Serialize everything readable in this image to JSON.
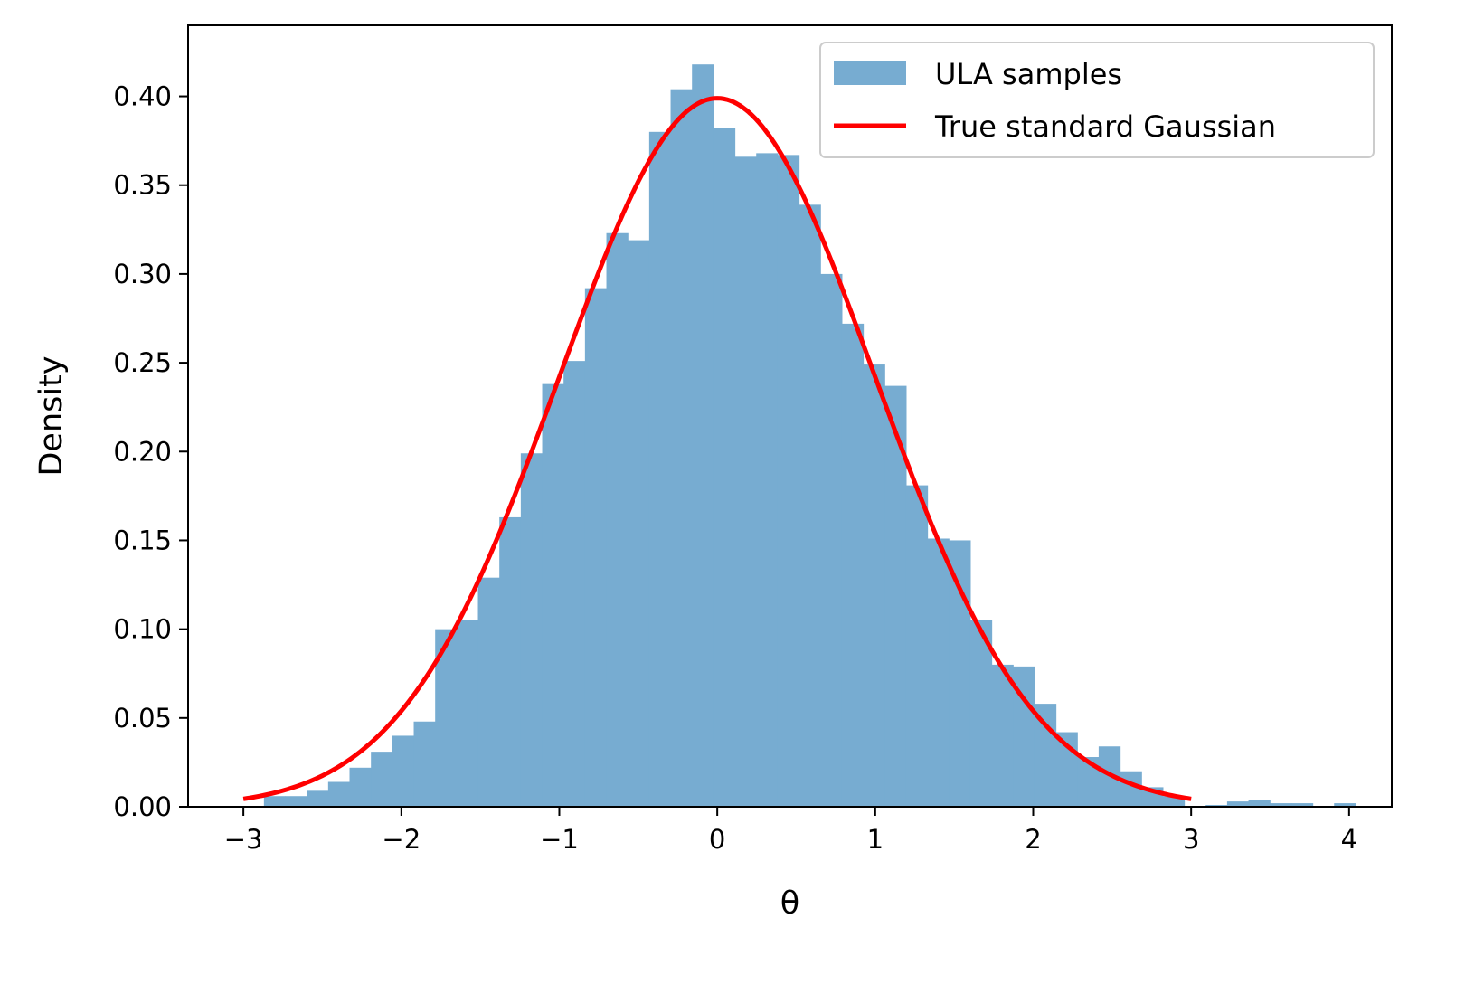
{
  "chart_data": {
    "type": "histogram",
    "xlabel": "θ",
    "ylabel": "Density",
    "xlim": [
      -3.35,
      4.27
    ],
    "ylim": [
      0,
      0.44
    ],
    "x_ticks": [
      -3,
      -2,
      -1,
      0,
      1,
      2,
      3,
      4
    ],
    "x_tick_labels": [
      "−3",
      "−2",
      "−1",
      "0",
      "1",
      "2",
      "3",
      "4"
    ],
    "y_ticks": [
      0,
      0.05,
      0.1,
      0.15,
      0.2,
      0.25,
      0.3,
      0.35,
      0.4
    ],
    "y_tick_labels": [
      "0.00",
      "0.05",
      "0.10",
      "0.15",
      "0.20",
      "0.25",
      "0.30",
      "0.35",
      "0.40"
    ],
    "grid": false,
    "legend_position": "upper right",
    "series": [
      {
        "name": "ULA samples",
        "kind": "histogram",
        "color": "#77acd1",
        "bin_start": -2.87,
        "bin_width": 0.1355,
        "values": [
          0.006,
          0.006,
          0.009,
          0.014,
          0.022,
          0.031,
          0.04,
          0.048,
          0.1,
          0.105,
          0.129,
          0.163,
          0.199,
          0.238,
          0.251,
          0.292,
          0.323,
          0.319,
          0.38,
          0.404,
          0.418,
          0.382,
          0.366,
          0.368,
          0.367,
          0.339,
          0.3,
          0.272,
          0.249,
          0.237,
          0.181,
          0.151,
          0.15,
          0.105,
          0.08,
          0.079,
          0.058,
          0.042,
          0.028,
          0.034,
          0.02,
          0.011,
          0.006,
          0,
          0.001,
          0.003,
          0.004,
          0.002,
          0.002,
          0,
          0.002
        ]
      },
      {
        "name": "True standard Gaussian",
        "kind": "line",
        "color": "#ff0000",
        "function": "standard_normal_pdf",
        "x_range": [
          -3,
          3
        ]
      }
    ]
  }
}
